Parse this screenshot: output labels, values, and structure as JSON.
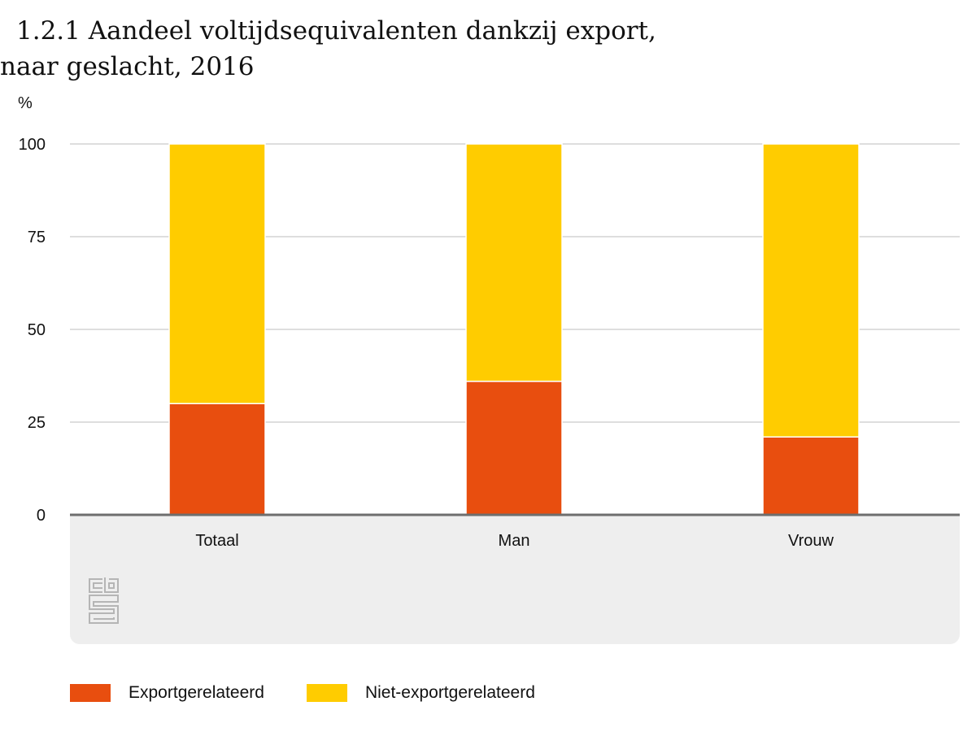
{
  "chart_data": {
    "type": "bar",
    "stacked": true,
    "title": "1.2.1 Aandeel voltijdsequivalenten dankzij export, naar geslacht, 2016",
    "ylabel": "%",
    "ylim": [
      0,
      100
    ],
    "yticks": [
      0,
      25,
      50,
      75,
      100
    ],
    "categories": [
      "Totaal",
      "Man",
      "Vrouw"
    ],
    "series": [
      {
        "name": "Exportgerelateerd",
        "color": "#e84e0f",
        "values": [
          30,
          36,
          21
        ]
      },
      {
        "name": "Niet-exportgerelateerd",
        "color": "#ffcc00",
        "values": [
          70,
          64,
          79
        ]
      }
    ],
    "grid": true,
    "legend": "bottom-left"
  },
  "logo": {
    "name": "cbs-logo",
    "text": "cbs"
  }
}
